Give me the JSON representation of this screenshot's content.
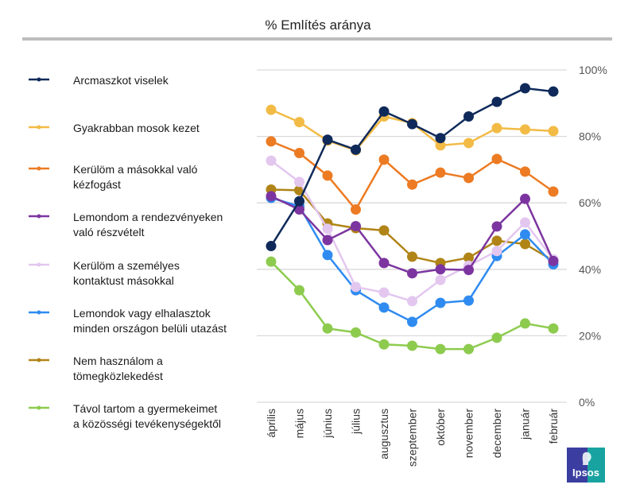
{
  "chart_data": {
    "type": "line",
    "title": "% Említés aránya",
    "xlabel": "",
    "ylabel": "",
    "ylim": [
      0,
      100
    ],
    "yticks": [
      0,
      20,
      40,
      60,
      80,
      100
    ],
    "ytick_labels": [
      "0%",
      "20%",
      "40%",
      "60%",
      "80%",
      "100%"
    ],
    "y_axis_side": "right",
    "grid": true,
    "legend_position": "left",
    "categories": [
      "április",
      "május",
      "június",
      "július",
      "augusztus",
      "szeptember",
      "október",
      "november",
      "december",
      "január",
      "február"
    ],
    "series": [
      {
        "name": "Arcmaszkot viselek",
        "color": "#0f2a5a",
        "values": [
          47,
          60.5,
          79,
          76,
          87.5,
          83.7,
          79.5,
          86,
          90.4,
          94.5,
          93.5
        ]
      },
      {
        "name": "Gyakrabban mosok kezet",
        "color": "#f2bb45",
        "values": [
          88,
          84.3,
          78.7,
          75.8,
          86,
          84,
          77.3,
          78,
          82.5,
          82.1,
          81.6
        ]
      },
      {
        "name": "Kerülöm a másokkal való kézfogást",
        "color": "#ec7b23",
        "values": [
          78.5,
          75,
          68.2,
          58,
          73,
          65.5,
          69.1,
          67.5,
          73.2,
          69.4,
          63.4
        ]
      },
      {
        "name": "Lemondom a rendezvényeken való részvételt",
        "color": "#7c35a0",
        "values": [
          62,
          58,
          48.8,
          53,
          41.9,
          38.8,
          40,
          39.8,
          52.9,
          61.2,
          42.5
        ]
      },
      {
        "name": "Kerülöm a személyes kontaktust másokkal",
        "color": "#e3c7ef",
        "values": [
          72.7,
          66.3,
          52.2,
          34.7,
          33,
          30.4,
          36.8,
          41.1,
          45.5,
          54.1,
          43
        ]
      },
      {
        "name": "Lemondok vagy elhalasztok minden országon belüli utazást",
        "color": "#2f8bf0",
        "values": [
          61.5,
          59,
          44.3,
          33.7,
          28.5,
          24.2,
          29.9,
          30.6,
          44,
          50.5,
          41.5
        ]
      },
      {
        "name": "Nem használom a tömegközlekedést",
        "color": "#b08417",
        "values": [
          64,
          63.8,
          53.8,
          52.4,
          51.7,
          43.8,
          41.9,
          43.5,
          48.6,
          47.6,
          42.6
        ]
      },
      {
        "name": "Távol tartom a gyermekeimet a közösségi tevékenységektől",
        "color": "#8dcb4e",
        "values": [
          42.3,
          33.7,
          22.2,
          21,
          17.4,
          17,
          16,
          16,
          19.4,
          23.7,
          22.2
        ]
      }
    ]
  },
  "legend": {
    "items": [
      {
        "line1": "Arcmaszkot viselek",
        "line2": ""
      },
      {
        "line1": "Gyakrabban mosok kezet",
        "line2": ""
      },
      {
        "line1": "Kerülöm a másokkal való",
        "line2": "kézfogást"
      },
      {
        "line1": "Lemondom a rendezvényeken",
        "line2": "való részvételt"
      },
      {
        "line1": "Kerülöm a személyes",
        "line2": "kontaktust másokkal"
      },
      {
        "line1": "Lemondok vagy elhalasztok",
        "line2": "minden országon belüli utazást"
      },
      {
        "line1": "Nem használom a",
        "line2": "tömegközlekedést"
      },
      {
        "line1": "Távol tartom a gyermekeimet",
        "line2": "a közösségi tevékenységektől"
      }
    ]
  },
  "logo": {
    "text": "Ipsos",
    "color_left": "#3b3ea0",
    "color_right": "#19a3a0"
  }
}
